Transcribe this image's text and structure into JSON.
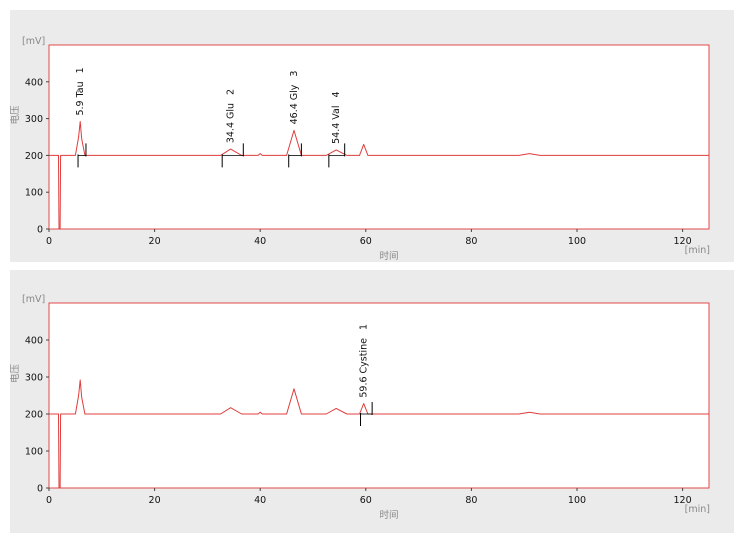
{
  "colors": {
    "frame": "#e04848",
    "trace": "#e03c3c",
    "panel_bg": "#ebebeb",
    "plot_bg": "#ffffff",
    "marker": "#000000"
  },
  "chart_data": [
    {
      "type": "line",
      "title": "",
      "xlabel": "时间",
      "ylabel": "电压",
      "x_unit": "[min]",
      "y_unit": "[mV]",
      "xlim": [
        0,
        125
      ],
      "ylim": [
        0,
        500
      ],
      "xticks": [
        0,
        20,
        40,
        60,
        80,
        100,
        120
      ],
      "yticks": [
        0,
        100,
        200,
        300,
        400
      ],
      "grid": false,
      "series": [
        {
          "x": [
            0,
            1.8,
            1.9,
            2.0,
            2.1,
            2.2,
            5.0,
            5.6,
            5.9,
            6.2,
            6.8,
            32.5,
            34.4,
            36.5,
            39.6,
            40.0,
            40.4,
            45.0,
            46.4,
            47.8,
            52.5,
            54.4,
            56.4,
            58.8,
            59.6,
            60.4,
            89.0,
            91.0,
            93.0,
            125
          ],
          "y": [
            200,
            200,
            0,
            0,
            0,
            200,
            200,
            250,
            292,
            245,
            200,
            200,
            217,
            200,
            200,
            205,
            200,
            200,
            268,
            200,
            200,
            215,
            200,
            200,
            230,
            200,
            200,
            205,
            200,
            200
          ]
        }
      ],
      "peaks": [
        {
          "rt": 5.9,
          "text": "5.9 Tau",
          "number": "1",
          "start": 5.5,
          "end": 7.0,
          "apex": 292
        },
        {
          "rt": 34.4,
          "text": "34.4 Glu",
          "number": "2",
          "start": 32.8,
          "end": 36.8,
          "apex": 217
        },
        {
          "rt": 46.4,
          "text": "46.4 Gly",
          "number": "3",
          "start": 45.4,
          "end": 47.8,
          "apex": 268
        },
        {
          "rt": 54.4,
          "text": "54.4 Val",
          "number": "4",
          "start": 53.0,
          "end": 56.0,
          "apex": 215
        }
      ]
    },
    {
      "type": "line",
      "title": "",
      "xlabel": "时间",
      "ylabel": "电压",
      "x_unit": "[min]",
      "y_unit": "[mV]",
      "xlim": [
        0,
        125
      ],
      "ylim": [
        0,
        500
      ],
      "xticks": [
        0,
        20,
        40,
        60,
        80,
        100,
        120
      ],
      "yticks": [
        0,
        100,
        200,
        300,
        400
      ],
      "grid": false,
      "series": [
        {
          "x": [
            0,
            1.8,
            1.9,
            2.0,
            2.1,
            2.2,
            5.0,
            5.6,
            5.9,
            6.2,
            6.8,
            32.5,
            34.4,
            36.5,
            39.6,
            40.0,
            40.4,
            45.0,
            46.4,
            47.8,
            52.5,
            54.4,
            56.4,
            58.8,
            59.6,
            60.4,
            89.0,
            91.0,
            93.0,
            125
          ],
          "y": [
            200,
            200,
            0,
            0,
            0,
            200,
            200,
            250,
            292,
            245,
            200,
            200,
            217,
            200,
            200,
            205,
            200,
            200,
            268,
            200,
            200,
            215,
            200,
            200,
            228,
            200,
            200,
            205,
            200,
            200
          ]
        }
      ],
      "peaks": [
        {
          "rt": 59.6,
          "text": "59.6 Cystine",
          "number": "1",
          "start": 59.0,
          "end": 61.2,
          "apex": 228
        }
      ]
    }
  ]
}
